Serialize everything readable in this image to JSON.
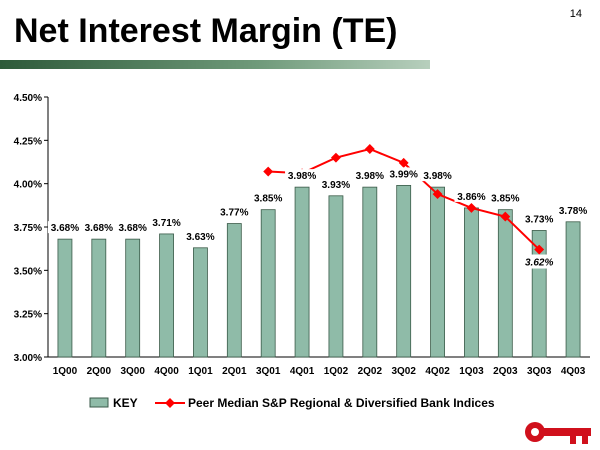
{
  "page_number": "14",
  "chart_data": {
    "type": "bar",
    "title": "Net Interest Margin (TE)",
    "categories": [
      "1Q00",
      "2Q00",
      "3Q00",
      "4Q00",
      "1Q01",
      "2Q01",
      "3Q01",
      "4Q01",
      "1Q02",
      "2Q02",
      "3Q02",
      "4Q02",
      "1Q03",
      "2Q03",
      "3Q03",
      "4Q03"
    ],
    "ylim": [
      3.0,
      4.5
    ],
    "yticks": [
      "3.00%",
      "3.25%",
      "3.50%",
      "3.75%",
      "4.00%",
      "4.25%",
      "4.50%"
    ],
    "series": [
      {
        "name": "KEY",
        "type": "bar",
        "color": "#8fbba8",
        "values": [
          3.68,
          3.68,
          3.68,
          3.71,
          3.63,
          3.77,
          3.85,
          3.98,
          3.93,
          3.98,
          3.99,
          3.98,
          3.86,
          3.85,
          3.73,
          3.78
        ],
        "labels": [
          "3.68%",
          "3.68%",
          "3.68%",
          "3.71%",
          "3.63%",
          "3.77%",
          "3.85%",
          "3.98%",
          "3.93%",
          "3.98%",
          "3.99%",
          "3.98%",
          "3.86%",
          "3.85%",
          "3.73%",
          "3.78%"
        ]
      },
      {
        "name": "Peer Median S&P Regional & Diversified Bank Indices",
        "type": "line",
        "color": "#ff0000",
        "values": [
          null,
          null,
          null,
          null,
          null,
          null,
          4.07,
          4.06,
          4.15,
          4.2,
          4.12,
          3.94,
          3.86,
          3.81,
          3.62,
          null
        ],
        "last_label": "3.62%"
      }
    ],
    "legend": "bottom"
  }
}
